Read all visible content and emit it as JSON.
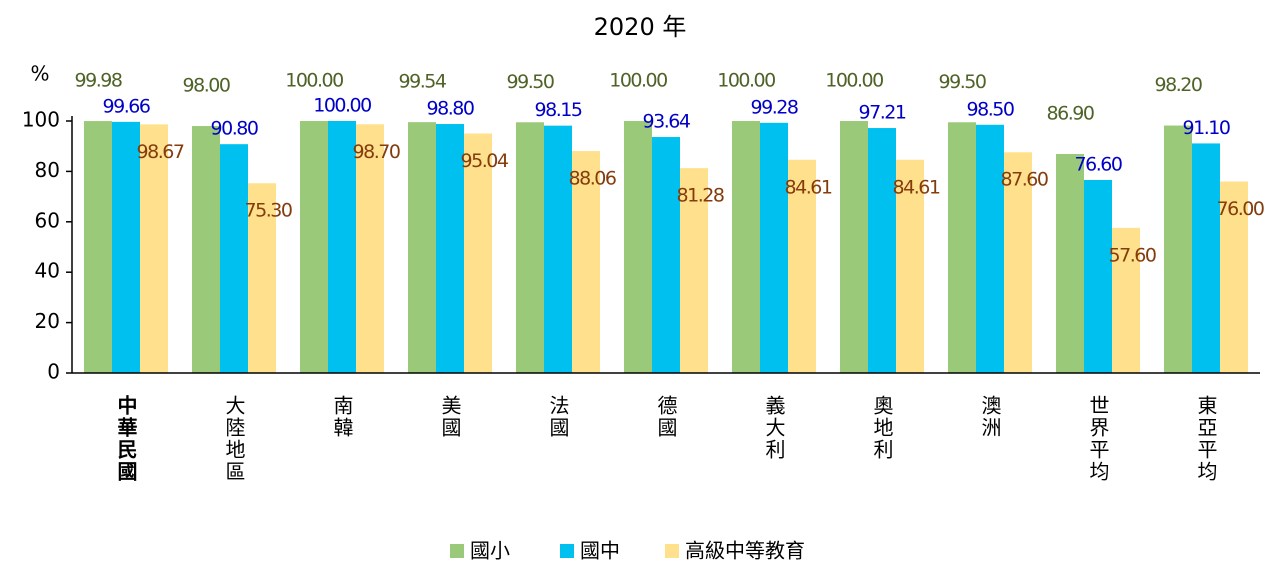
{
  "chart_data": {
    "type": "bar",
    "title": "2020 年",
    "y_label": "%",
    "categories": [
      "中華民國",
      "大陸地區",
      "南韓",
      "美國",
      "法國",
      "德國",
      "義大利",
      "奧地利",
      "澳洲",
      "世界平均",
      "東亞平均"
    ],
    "series": [
      {
        "name": "國小",
        "color": "#9bc97a",
        "label_color": "#4f6228",
        "values": [
          99.98,
          98,
          100,
          99.54,
          99.5,
          100,
          100,
          100,
          99.5,
          86.9,
          98.2
        ],
        "value_labels": [
          "99.98",
          "98.00",
          "100.00",
          "99.54",
          "99.50",
          "100.00",
          "100.00",
          "100.00",
          "99.50",
          "86.90",
          "98.20"
        ]
      },
      {
        "name": "國中",
        "color": "#00c0f0",
        "label_color": "#0000c8",
        "values": [
          99.66,
          90.8,
          100,
          98.8,
          98.15,
          93.64,
          99.28,
          97.21,
          98.5,
          76.6,
          91.1
        ],
        "value_labels": [
          "99.66",
          "90.80",
          "100.00",
          "98.80",
          "98.15",
          "93.64",
          "99.28",
          "97.21",
          "98.50",
          "76.60",
          "91.10"
        ]
      },
      {
        "name": "高級中等教育",
        "color": "#ffe08c",
        "label_color": "#843c0c",
        "values": [
          98.67,
          75.3,
          98.7,
          95.04,
          88.06,
          81.28,
          84.61,
          84.61,
          87.6,
          57.6,
          76
        ],
        "value_labels": [
          "98.67",
          "75.30",
          "98.70",
          "95.04",
          "88.06",
          "81.28",
          "84.61",
          "84.61",
          "87.60",
          "57.60",
          "76.00"
        ]
      }
    ],
    "ylim": [
      0,
      100
    ],
    "yticks": [
      0,
      20,
      40,
      60,
      80,
      100
    ],
    "grid": false,
    "legend": "bottom"
  }
}
